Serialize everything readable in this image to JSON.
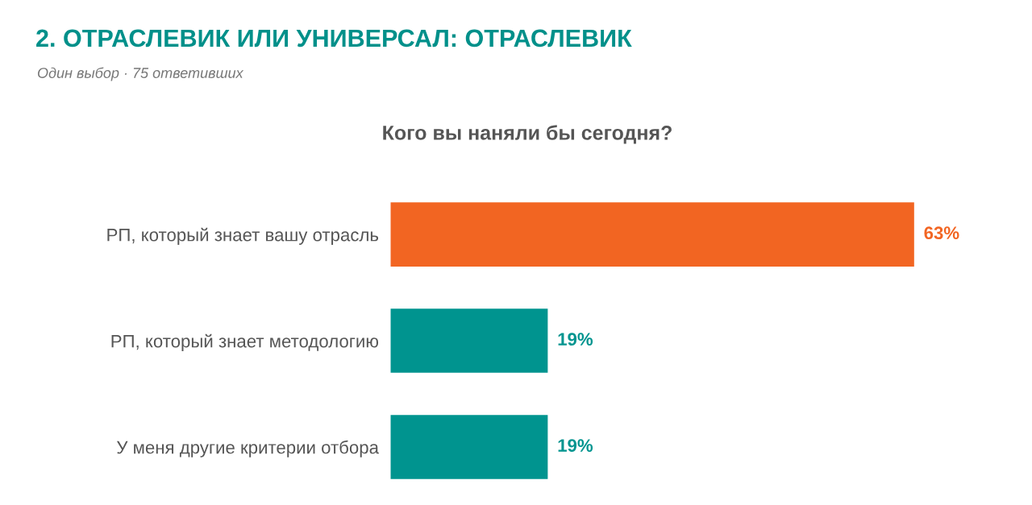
{
  "chart_data": {
    "type": "bar",
    "orientation": "horizontal",
    "title": "2. ОТРАСЛЕВИК ИЛИ УНИВЕРСАЛ: ОТРАСЛЕВИК",
    "subtitle": "Один выбор · 75 ответивших",
    "annotations": [
      "Кого вы наняли бы сегодня?"
    ],
    "categories": [
      "РП, который знает вашу отрасль",
      "РП, который знает методологию",
      "У меня другие критерии отбора"
    ],
    "values": [
      63,
      19,
      19
    ],
    "value_labels": [
      "63%",
      "19%",
      "19%"
    ],
    "colors": [
      "#f26522",
      "#00948f",
      "#00948f"
    ],
    "grid": false,
    "legend": false
  }
}
